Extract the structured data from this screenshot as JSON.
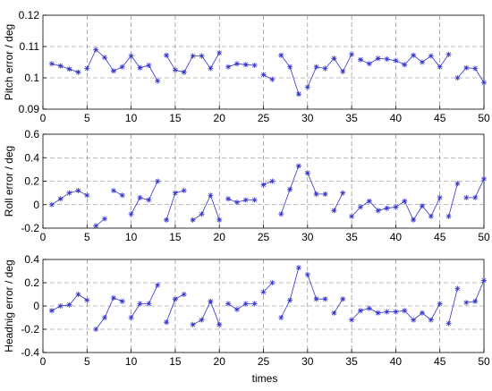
{
  "figure": {
    "xlabel": "times"
  },
  "colors": {
    "series": "#3333cc",
    "grid": "#7a7a7a",
    "axis": "#000000"
  },
  "chart_data": [
    {
      "type": "line",
      "ylabel": "Pitch error / deg",
      "xlabel": "",
      "xlim": [
        0,
        50
      ],
      "ylim": [
        0.09,
        0.12
      ],
      "xticks": [
        0,
        5,
        10,
        15,
        20,
        25,
        30,
        35,
        40,
        45,
        50
      ],
      "yticks": [
        0.09,
        0.1,
        0.11,
        0.12
      ],
      "ytick_labels": [
        "0.09",
        "0.1",
        "0.11",
        "0.12"
      ],
      "grid": "dashed",
      "series": [
        {
          "marker": "*",
          "x": [
            1,
            2,
            3,
            4,
            5,
            6,
            7,
            8,
            9,
            10,
            11,
            12,
            13,
            14,
            15,
            16,
            17,
            18,
            19,
            20,
            21,
            22,
            23,
            24,
            25,
            26,
            27,
            28,
            29,
            30,
            31,
            32,
            33,
            34,
            35,
            36,
            37,
            38,
            39,
            40,
            41,
            42,
            43,
            44,
            45,
            46,
            47,
            48,
            49,
            50
          ],
          "y": [
            0.1045,
            0.1038,
            0.1028,
            0.1018,
            0.103,
            0.109,
            0.1065,
            0.1022,
            0.1035,
            0.107,
            0.1032,
            0.104,
            0.099,
            0.1072,
            0.1025,
            0.1018,
            0.107,
            0.107,
            0.103,
            0.108,
            0.1035,
            0.1045,
            0.1042,
            0.104,
            0.101,
            0.0995,
            0.1072,
            0.1035,
            0.0948,
            0.097,
            0.1035,
            0.103,
            0.1062,
            0.102,
            0.1075,
            0.1058,
            0.1045,
            0.1062,
            0.106,
            0.1055,
            0.1042,
            0.1072,
            0.105,
            0.107,
            0.1035,
            0.1075,
            0.1,
            0.1032,
            0.103,
            0.0985
          ],
          "segments": [
            [
              1,
              4
            ],
            [
              5,
              13
            ],
            [
              14,
              20
            ],
            [
              21,
              24
            ],
            [
              25,
              26
            ],
            [
              27,
              29
            ],
            [
              30,
              35
            ],
            [
              36,
              46
            ],
            [
              47,
              50
            ]
          ]
        }
      ]
    },
    {
      "type": "line",
      "ylabel": "Roll error / deg",
      "xlabel": "",
      "xlim": [
        0,
        50
      ],
      "ylim": [
        -0.2,
        0.6
      ],
      "xticks": [
        0,
        5,
        10,
        15,
        20,
        25,
        30,
        35,
        40,
        45,
        50
      ],
      "yticks": [
        -0.2,
        0,
        0.2,
        0.4,
        0.6
      ],
      "ytick_labels": [
        "-0.2",
        "0",
        "0.2",
        "0.4",
        "0.6"
      ],
      "grid": "dashed",
      "series": [
        {
          "marker": "*",
          "x": [
            1,
            2,
            3,
            4,
            5,
            6,
            7,
            8,
            9,
            10,
            11,
            12,
            13,
            14,
            15,
            16,
            17,
            18,
            19,
            20,
            21,
            22,
            23,
            24,
            25,
            26,
            27,
            28,
            29,
            30,
            31,
            32,
            33,
            34,
            35,
            36,
            37,
            38,
            39,
            40,
            41,
            42,
            43,
            44,
            45,
            46,
            47,
            48,
            49,
            50
          ],
          "y": [
            0.0,
            0.05,
            0.1,
            0.12,
            0.08,
            -0.18,
            -0.12,
            0.12,
            0.08,
            -0.08,
            0.06,
            0.04,
            0.2,
            -0.13,
            0.1,
            0.12,
            -0.13,
            -0.08,
            0.08,
            -0.13,
            0.05,
            0.02,
            0.04,
            0.04,
            0.17,
            0.2,
            -0.08,
            0.13,
            0.33,
            0.27,
            0.09,
            0.09,
            -0.05,
            0.1,
            -0.1,
            -0.02,
            0.03,
            -0.05,
            -0.03,
            -0.02,
            0.03,
            -0.13,
            -0.01,
            -0.1,
            0.06,
            -0.1,
            0.18,
            0.06,
            0.06,
            0.22
          ],
          "segments": [
            [
              1,
              5
            ],
            [
              6,
              7
            ],
            [
              8,
              9
            ],
            [
              10,
              13
            ],
            [
              14,
              16
            ],
            [
              17,
              20
            ],
            [
              21,
              24
            ],
            [
              25,
              26
            ],
            [
              27,
              29
            ],
            [
              30,
              32
            ],
            [
              33,
              34
            ],
            [
              35,
              45
            ],
            [
              46,
              47
            ],
            [
              48,
              50
            ]
          ]
        }
      ]
    },
    {
      "type": "line",
      "ylabel": "Headnig error / deg",
      "xlabel": "times",
      "xlim": [
        0,
        50
      ],
      "ylim": [
        -0.4,
        0.4
      ],
      "xticks": [
        0,
        5,
        10,
        15,
        20,
        25,
        30,
        35,
        40,
        45,
        50
      ],
      "yticks": [
        -0.4,
        -0.2,
        0,
        0.2,
        0.4
      ],
      "ytick_labels": [
        "-0.4",
        "-0.2",
        "0",
        "0.2",
        "0.4"
      ],
      "grid": "dashed",
      "series": [
        {
          "marker": "*",
          "x": [
            1,
            2,
            3,
            4,
            5,
            6,
            7,
            8,
            9,
            10,
            11,
            12,
            13,
            14,
            15,
            16,
            17,
            18,
            19,
            20,
            21,
            22,
            23,
            24,
            25,
            26,
            27,
            28,
            29,
            30,
            31,
            32,
            33,
            34,
            35,
            36,
            37,
            38,
            39,
            40,
            41,
            42,
            43,
            44,
            45,
            46,
            47,
            48,
            49,
            50
          ],
          "y": [
            -0.04,
            0.0,
            0.01,
            0.1,
            0.05,
            -0.2,
            -0.1,
            0.07,
            0.04,
            -0.1,
            0.02,
            0.02,
            0.18,
            -0.14,
            0.06,
            0.1,
            -0.16,
            -0.12,
            0.04,
            -0.16,
            0.02,
            -0.03,
            0.02,
            0.02,
            0.12,
            0.2,
            -0.1,
            0.05,
            0.33,
            0.27,
            0.06,
            0.06,
            -0.06,
            0.06,
            -0.12,
            -0.04,
            -0.02,
            -0.06,
            -0.05,
            -0.05,
            -0.04,
            -0.12,
            -0.06,
            -0.12,
            0.02,
            -0.15,
            0.15,
            0.03,
            0.04,
            0.22
          ],
          "segments": [
            [
              1,
              5
            ],
            [
              6,
              9
            ],
            [
              10,
              13
            ],
            [
              14,
              16
            ],
            [
              17,
              20
            ],
            [
              21,
              24
            ],
            [
              25,
              26
            ],
            [
              27,
              29
            ],
            [
              30,
              32
            ],
            [
              33,
              34
            ],
            [
              35,
              45
            ],
            [
              46,
              47
            ],
            [
              48,
              50
            ]
          ]
        }
      ]
    }
  ]
}
